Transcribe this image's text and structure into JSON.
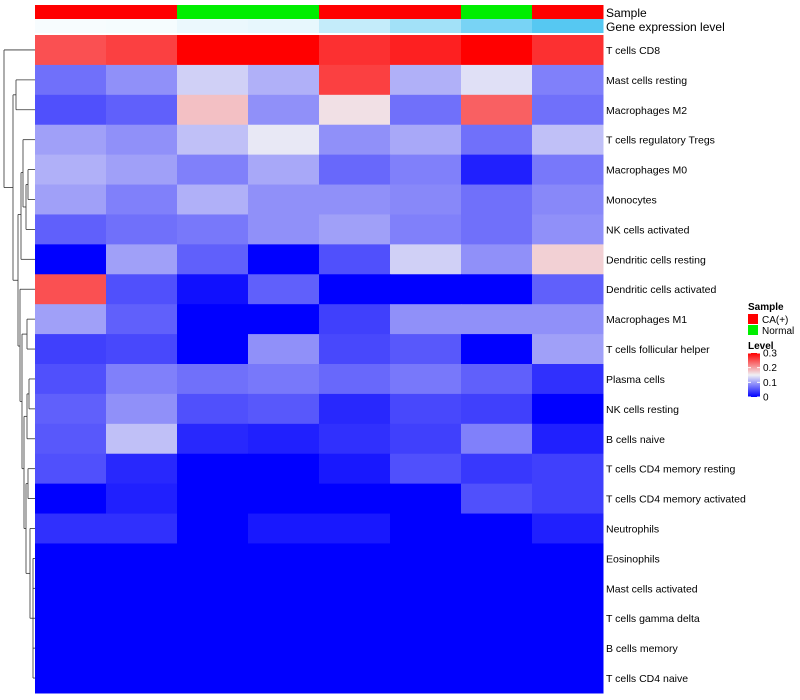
{
  "chart_data": {
    "type": "heatmap",
    "title": "",
    "annotation_tracks": [
      "Sample",
      "Gene expression level"
    ],
    "samples": [
      {
        "group": "CA(+)",
        "expression": 0.05
      },
      {
        "group": "CA(+)",
        "expression": 0.06
      },
      {
        "group": "Normal",
        "expression": 0.12
      },
      {
        "group": "Normal",
        "expression": 0.14
      },
      {
        "group": "CA(+)",
        "expression": 0.35
      },
      {
        "group": "CA(+)",
        "expression": 0.55
      },
      {
        "group": "Normal",
        "expression": 0.8
      },
      {
        "group": "CA(+)",
        "expression": 1.0
      }
    ],
    "rows": [
      {
        "label": "T cells CD8",
        "values": [
          0.25,
          0.26,
          0.3,
          0.3,
          0.27,
          0.28,
          0.3,
          0.27
        ]
      },
      {
        "label": "Mast cells resting",
        "values": [
          0.07,
          0.09,
          0.13,
          0.11,
          0.26,
          0.11,
          0.14,
          0.08
        ]
      },
      {
        "label": "Macrophages M2",
        "values": [
          0.05,
          0.06,
          0.18,
          0.09,
          0.16,
          0.07,
          0.24,
          0.07
        ]
      },
      {
        "label": "T cells regulatory  Tregs",
        "values": [
          0.1,
          0.09,
          0.12,
          0.145,
          0.09,
          0.105,
          0.07,
          0.12
        ]
      },
      {
        "label": "Macrophages M0",
        "values": [
          0.11,
          0.1,
          0.08,
          0.105,
          0.065,
          0.08,
          0.02,
          0.075
        ]
      },
      {
        "label": "Monocytes",
        "values": [
          0.1,
          0.08,
          0.11,
          0.09,
          0.09,
          0.085,
          0.07,
          0.085
        ]
      },
      {
        "label": "NK cells activated",
        "values": [
          0.06,
          0.07,
          0.075,
          0.09,
          0.1,
          0.08,
          0.07,
          0.09
        ]
      },
      {
        "label": "Dendritic cells resting",
        "values": [
          0.0,
          0.1,
          0.06,
          0.0,
          0.05,
          0.13,
          0.09,
          0.17
        ]
      },
      {
        "label": "Dendritic cells activated",
        "values": [
          0.25,
          0.05,
          0.01,
          0.06,
          0.0,
          0.0,
          0.0,
          0.06
        ]
      },
      {
        "label": "Macrophages M1",
        "values": [
          0.1,
          0.06,
          0.0,
          0.0,
          0.04,
          0.09,
          0.09,
          0.09
        ]
      },
      {
        "label": "T cells follicular helper",
        "values": [
          0.04,
          0.045,
          0.0,
          0.09,
          0.045,
          0.055,
          0.0,
          0.1
        ]
      },
      {
        "label": "Plasma cells",
        "values": [
          0.05,
          0.08,
          0.07,
          0.075,
          0.065,
          0.075,
          0.06,
          0.03
        ]
      },
      {
        "label": "NK cells resting",
        "values": [
          0.06,
          0.09,
          0.05,
          0.055,
          0.025,
          0.045,
          0.04,
          0.0
        ]
      },
      {
        "label": "B cells naive",
        "values": [
          0.055,
          0.12,
          0.025,
          0.02,
          0.03,
          0.04,
          0.08,
          0.02
        ]
      },
      {
        "label": "T cells CD4 memory resting",
        "values": [
          0.05,
          0.025,
          0.0,
          0.0,
          0.015,
          0.05,
          0.035,
          0.04
        ]
      },
      {
        "label": "T cells CD4 memory activated",
        "values": [
          0.0,
          0.02,
          0.0,
          0.0,
          0.0,
          0.0,
          0.05,
          0.04
        ]
      },
      {
        "label": "Neutrophils",
        "values": [
          0.03,
          0.03,
          0.0,
          0.015,
          0.015,
          0.0,
          0.0,
          0.02
        ]
      },
      {
        "label": "Eosinophils",
        "values": [
          0.0,
          0.0,
          0.0,
          0.0,
          0.0,
          0.0,
          0.0,
          0.0
        ]
      },
      {
        "label": "Mast cells activated",
        "values": [
          0.0,
          0.0,
          0.0,
          0.0,
          0.0,
          0.0,
          0.0,
          0.0
        ]
      },
      {
        "label": "T cells gamma delta",
        "values": [
          0.0,
          0.0,
          0.0,
          0.0,
          0.0,
          0.0,
          0.0,
          0.0
        ]
      },
      {
        "label": "B cells memory",
        "values": [
          0.0,
          0.0,
          0.0,
          0.0,
          0.0,
          0.0,
          0.0,
          0.0
        ]
      },
      {
        "label": "T cells CD4 naive",
        "values": [
          0.0,
          0.0,
          0.0,
          0.0,
          0.0,
          0.0,
          0.0,
          0.0
        ]
      }
    ],
    "color_scale": {
      "min": 0,
      "mid": 0.15,
      "max": 0.3,
      "low_color": "#0000ff",
      "mid_color": "#f0f0f5",
      "high_color": "#ff0000"
    },
    "legend": {
      "position": "right",
      "sample_title": "Sample",
      "sample_entries": [
        {
          "label": "CA(+)",
          "color": "#ff0000"
        },
        {
          "label": "Normal",
          "color": "#00ee00"
        }
      ],
      "level_title": "Level",
      "level_ticks": [
        {
          "label": "0.3",
          "value": 0.3
        },
        {
          "label": "0.2",
          "value": 0.2
        },
        {
          "label": "0.1",
          "value": 0.1
        },
        {
          "label": "0",
          "value": 0
        }
      ]
    },
    "expression_colors": {
      "low": "#ffffff",
      "high": "#56c8f2"
    },
    "row_dendrogram": true
  }
}
